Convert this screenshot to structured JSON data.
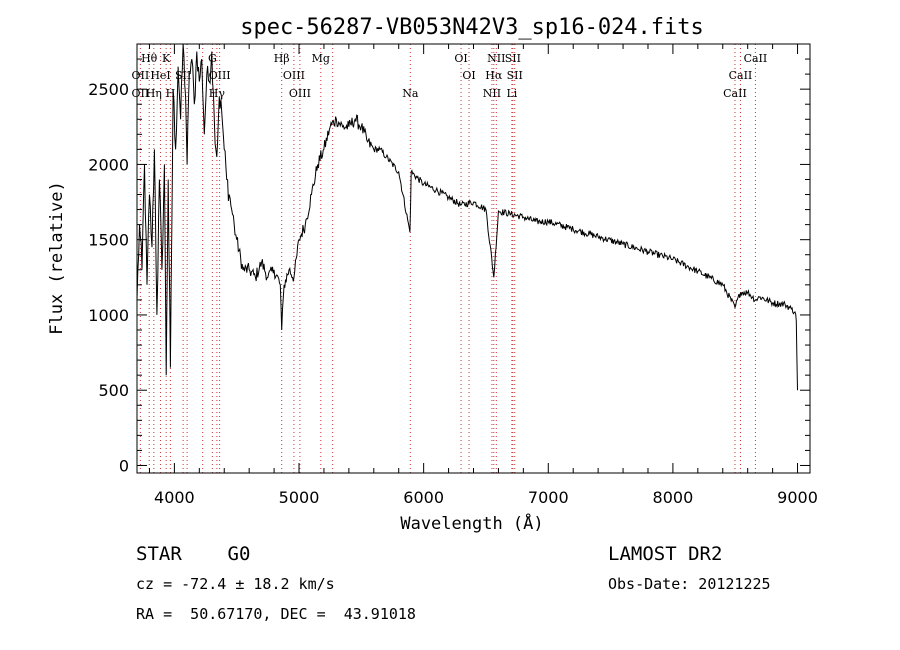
{
  "chart_data": {
    "type": "line",
    "title": "spec-56287-VB053N42V3_sp16-024.fits",
    "xlabel": "Wavelength (Å)",
    "ylabel": "Flux (relative)",
    "xlim": [
      3700,
      9100
    ],
    "ylim": [
      -50,
      2800
    ],
    "x_ticks": [
      4000,
      5000,
      6000,
      7000,
      8000,
      9000
    ],
    "y_ticks": [
      0,
      500,
      1000,
      1500,
      2000,
      2500
    ],
    "grid": false,
    "series": [
      {
        "x": [
          3700,
          3720,
          3740,
          3760,
          3780,
          3800,
          3820,
          3840,
          3860,
          3880,
          3900,
          3920,
          3934,
          3950,
          3968,
          3990,
          4010,
          4030,
          4050,
          4070,
          4090,
          4102,
          4120,
          4140,
          4160,
          4180,
          4200,
          4220,
          4240,
          4260,
          4280,
          4300,
          4320,
          4340,
          4360,
          4380,
          4400,
          4420,
          4440,
          4460,
          4480,
          4500,
          4550,
          4600,
          4650,
          4700,
          4750,
          4800,
          4850,
          4861,
          4880,
          4920,
          4960,
          5000,
          5050,
          5100,
          5150,
          5200,
          5250,
          5300,
          5350,
          5400,
          5450,
          5500,
          5550,
          5600,
          5650,
          5700,
          5800,
          5890,
          5900,
          6000,
          6100,
          6200,
          6300,
          6400,
          6500,
          6563,
          6600,
          6700,
          6800,
          6900,
          7000,
          7200,
          7400,
          7600,
          7800,
          8000,
          8200,
          8400,
          8498,
          8542,
          8600,
          8662,
          8700,
          8800,
          8900,
          8950,
          8980,
          8990,
          9000
        ],
        "y": [
          1100,
          1600,
          1300,
          2000,
          1200,
          1800,
          1450,
          2100,
          1000,
          1900,
          1300,
          2000,
          600,
          1900,
          650,
          2500,
          2100,
          2650,
          2300,
          2800,
          2450,
          2000,
          2600,
          2700,
          2400,
          2750,
          2550,
          2700,
          2200,
          2600,
          2550,
          2750,
          2300,
          2050,
          2450,
          2350,
          2100,
          1900,
          1800,
          1700,
          1600,
          1500,
          1300,
          1300,
          1250,
          1350,
          1250,
          1300,
          1200,
          900,
          1200,
          1300,
          1250,
          1500,
          1600,
          1800,
          2000,
          2100,
          2250,
          2300,
          2250,
          2250,
          2300,
          2250,
          2150,
          2100,
          2100,
          2050,
          1950,
          1550,
          1950,
          1870,
          1830,
          1780,
          1730,
          1750,
          1700,
          1250,
          1690,
          1670,
          1650,
          1620,
          1620,
          1570,
          1520,
          1470,
          1420,
          1370,
          1290,
          1200,
          1050,
          1150,
          1150,
          1100,
          1120,
          1080,
          1070,
          1040,
          1020,
          960,
          500
        ]
      }
    ],
    "spectral_lines": [
      {
        "label": "Hθ",
        "wl": 3798,
        "row": 0
      },
      {
        "label": "K",
        "wl": 3934,
        "row": 0
      },
      {
        "label": "OII",
        "wl": 3727,
        "row": 1
      },
      {
        "label": "HeI",
        "wl": 3889,
        "row": 1
      },
      {
        "label": "SII",
        "wl": 4070,
        "row": 1
      },
      {
        "label": "OII",
        "wl": 3727,
        "row": 2
      },
      {
        "label": "Hη",
        "wl": 3835,
        "row": 2
      },
      {
        "label": "H",
        "wl": 3968,
        "row": 2
      },
      {
        "label": "G",
        "wl": 4305,
        "row": 0
      },
      {
        "label": "OIII",
        "wl": 4363,
        "row": 1
      },
      {
        "label": "Hγ",
        "wl": 4341,
        "row": 2
      },
      {
        "label": "Hβ",
        "wl": 4861,
        "row": 0
      },
      {
        "label": "OIII",
        "wl": 4959,
        "row": 1
      },
      {
        "label": "OIII",
        "wl": 5007,
        "row": 2
      },
      {
        "label": "Mg",
        "wl": 5175,
        "row": 0
      },
      {
        "label": "Na",
        "wl": 5893,
        "row": 2
      },
      {
        "label": "OI",
        "wl": 6300,
        "row": 0
      },
      {
        "label": "OI",
        "wl": 6364,
        "row": 1
      },
      {
        "label": "NII",
        "wl": 6583,
        "row": 0
      },
      {
        "label": "SII",
        "wl": 6716,
        "row": 0
      },
      {
        "label": "Hα",
        "wl": 6563,
        "row": 1
      },
      {
        "label": "SII",
        "wl": 6731,
        "row": 1
      },
      {
        "label": "NII",
        "wl": 6548,
        "row": 2
      },
      {
        "label": "Li",
        "wl": 6708,
        "row": 2
      },
      {
        "label": "CaII",
        "wl": 8662,
        "row": 0
      },
      {
        "label": "CaII",
        "wl": 8542,
        "row": 1
      },
      {
        "label": "CaII",
        "wl": 8498,
        "row": 2
      }
    ],
    "extra_lines": [
      4102,
      4227,
      5270
    ]
  },
  "footer": {
    "object_type": "STAR    G0",
    "survey": "LAMOST DR2",
    "cz": "cz = -72.4 ± 18.2 km/s",
    "obs_date": "Obs-Date: 20121225",
    "coords": "RA =  50.67170, DEC =  43.91018"
  },
  "colors": {
    "spectrum": "#000000",
    "line_marker": "#cc3333",
    "axes": "#000000"
  }
}
